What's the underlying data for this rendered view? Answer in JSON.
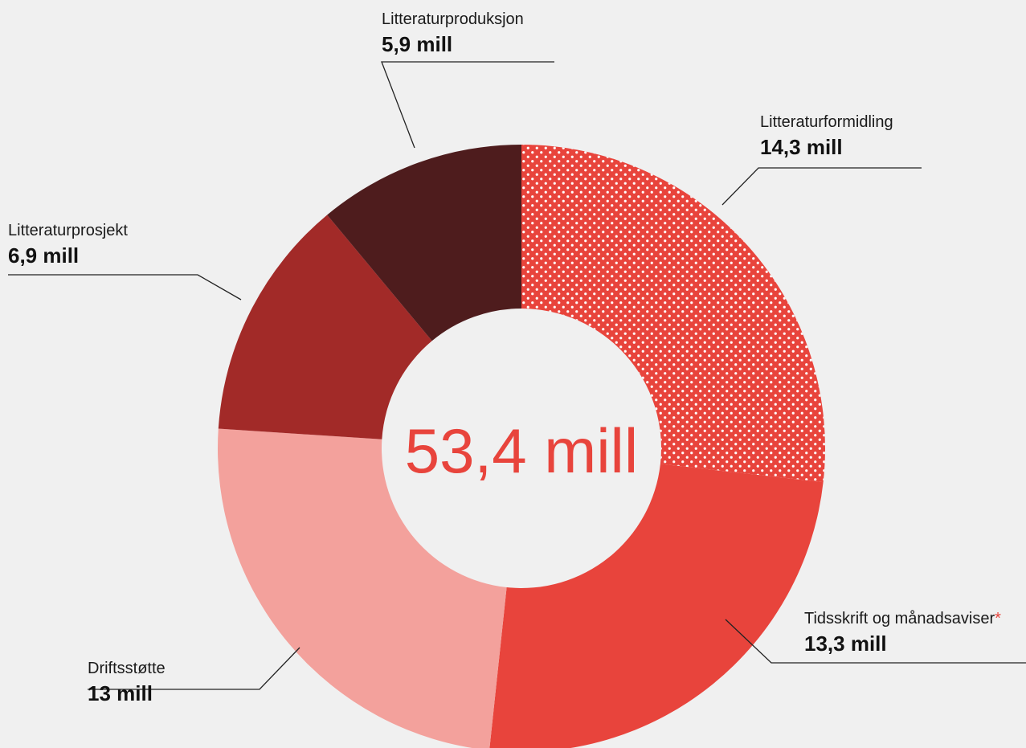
{
  "colors": {
    "background": "#f0f0f0",
    "center_text": "#e8443c",
    "asterisk": "#e8443c",
    "dot_pattern": "#ffffff"
  },
  "chart_data": {
    "type": "pie",
    "center_label": "53,4 mill",
    "slices": [
      {
        "label": "Litteraturformidling",
        "value": 14.3,
        "value_label": "14,3 mill",
        "color": "#e8443c",
        "pattern": "dots"
      },
      {
        "label": "Tidsskrift og månadsaviser",
        "note_mark": "*",
        "value": 13.3,
        "value_label": "13,3 mill",
        "color": "#e8443c"
      },
      {
        "label": "Driftsstøtte",
        "value": 13,
        "value_label": "13 mill",
        "color": "#f3a19c"
      },
      {
        "label": "Litteraturprosjekt",
        "value": 6.9,
        "value_label": "6,9 mill",
        "color": "#a22a28"
      },
      {
        "label": "Litteraturproduksjon",
        "value": 5.9,
        "value_label": "5,9 mill",
        "color": "#4e1c1d"
      }
    ]
  }
}
